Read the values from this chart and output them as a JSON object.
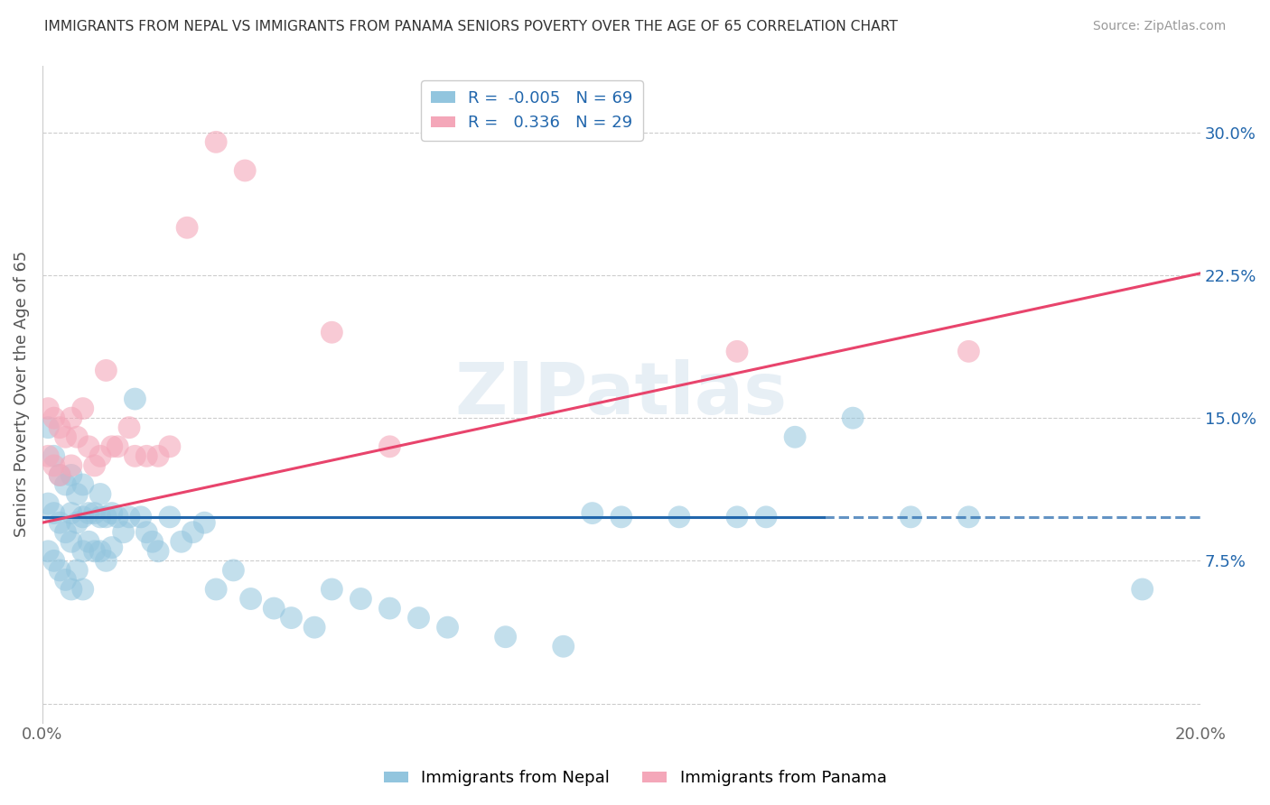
{
  "title": "IMMIGRANTS FROM NEPAL VS IMMIGRANTS FROM PANAMA SENIORS POVERTY OVER THE AGE OF 65 CORRELATION CHART",
  "source": "Source: ZipAtlas.com",
  "ylabel": "Seniors Poverty Over the Age of 65",
  "xlim": [
    0.0,
    0.2
  ],
  "ylim": [
    -0.01,
    0.335
  ],
  "ytick_vals": [
    0.0,
    0.075,
    0.15,
    0.225,
    0.3
  ],
  "ytick_labels": [
    "",
    "7.5%",
    "15.0%",
    "22.5%",
    "30.0%"
  ],
  "xtick_vals": [
    0.0,
    0.04,
    0.08,
    0.12,
    0.16,
    0.2
  ],
  "xtick_labels": [
    "0.0%",
    "",
    "",
    "",
    "",
    "20.0%"
  ],
  "nepal_R": -0.005,
  "nepal_N": 69,
  "panama_R": 0.336,
  "panama_N": 29,
  "nepal_color": "#92c5de",
  "panama_color": "#f4a7b9",
  "nepal_line_color": "#2166ac",
  "panama_line_color": "#e8446c",
  "nepal_line_solid_end": 0.135,
  "nepal_line_y0": 0.098,
  "nepal_line_y1": 0.098,
  "panama_line_y0": 0.095,
  "panama_line_y1": 0.226,
  "watermark": "ZIPatlas",
  "nepal_scatter_x": [
    0.001,
    0.001,
    0.001,
    0.002,
    0.002,
    0.002,
    0.003,
    0.003,
    0.003,
    0.004,
    0.004,
    0.004,
    0.005,
    0.005,
    0.005,
    0.005,
    0.006,
    0.006,
    0.006,
    0.007,
    0.007,
    0.007,
    0.007,
    0.008,
    0.008,
    0.009,
    0.009,
    0.01,
    0.01,
    0.01,
    0.011,
    0.011,
    0.012,
    0.012,
    0.013,
    0.014,
    0.015,
    0.016,
    0.017,
    0.018,
    0.019,
    0.02,
    0.022,
    0.024,
    0.026,
    0.028,
    0.03,
    0.033,
    0.036,
    0.04,
    0.043,
    0.047,
    0.05,
    0.055,
    0.06,
    0.065,
    0.07,
    0.08,
    0.09,
    0.095,
    0.1,
    0.11,
    0.12,
    0.125,
    0.13,
    0.14,
    0.15,
    0.16,
    0.19
  ],
  "nepal_scatter_y": [
    0.145,
    0.105,
    0.08,
    0.13,
    0.1,
    0.075,
    0.12,
    0.095,
    0.07,
    0.115,
    0.09,
    0.065,
    0.12,
    0.1,
    0.085,
    0.06,
    0.11,
    0.095,
    0.07,
    0.115,
    0.098,
    0.08,
    0.06,
    0.1,
    0.085,
    0.1,
    0.08,
    0.11,
    0.098,
    0.08,
    0.098,
    0.075,
    0.1,
    0.082,
    0.098,
    0.09,
    0.098,
    0.16,
    0.098,
    0.09,
    0.085,
    0.08,
    0.098,
    0.085,
    0.09,
    0.095,
    0.06,
    0.07,
    0.055,
    0.05,
    0.045,
    0.04,
    0.06,
    0.055,
    0.05,
    0.045,
    0.04,
    0.035,
    0.03,
    0.1,
    0.098,
    0.098,
    0.098,
    0.098,
    0.14,
    0.15,
    0.098,
    0.098,
    0.06
  ],
  "panama_scatter_x": [
    0.001,
    0.001,
    0.002,
    0.002,
    0.003,
    0.003,
    0.004,
    0.005,
    0.005,
    0.006,
    0.007,
    0.008,
    0.009,
    0.01,
    0.011,
    0.012,
    0.013,
    0.015,
    0.016,
    0.018,
    0.02,
    0.022,
    0.025,
    0.03,
    0.035,
    0.05,
    0.06,
    0.12,
    0.16
  ],
  "panama_scatter_y": [
    0.155,
    0.13,
    0.15,
    0.125,
    0.145,
    0.12,
    0.14,
    0.15,
    0.125,
    0.14,
    0.155,
    0.135,
    0.125,
    0.13,
    0.175,
    0.135,
    0.135,
    0.145,
    0.13,
    0.13,
    0.13,
    0.135,
    0.25,
    0.295,
    0.28,
    0.195,
    0.135,
    0.185,
    0.185
  ]
}
